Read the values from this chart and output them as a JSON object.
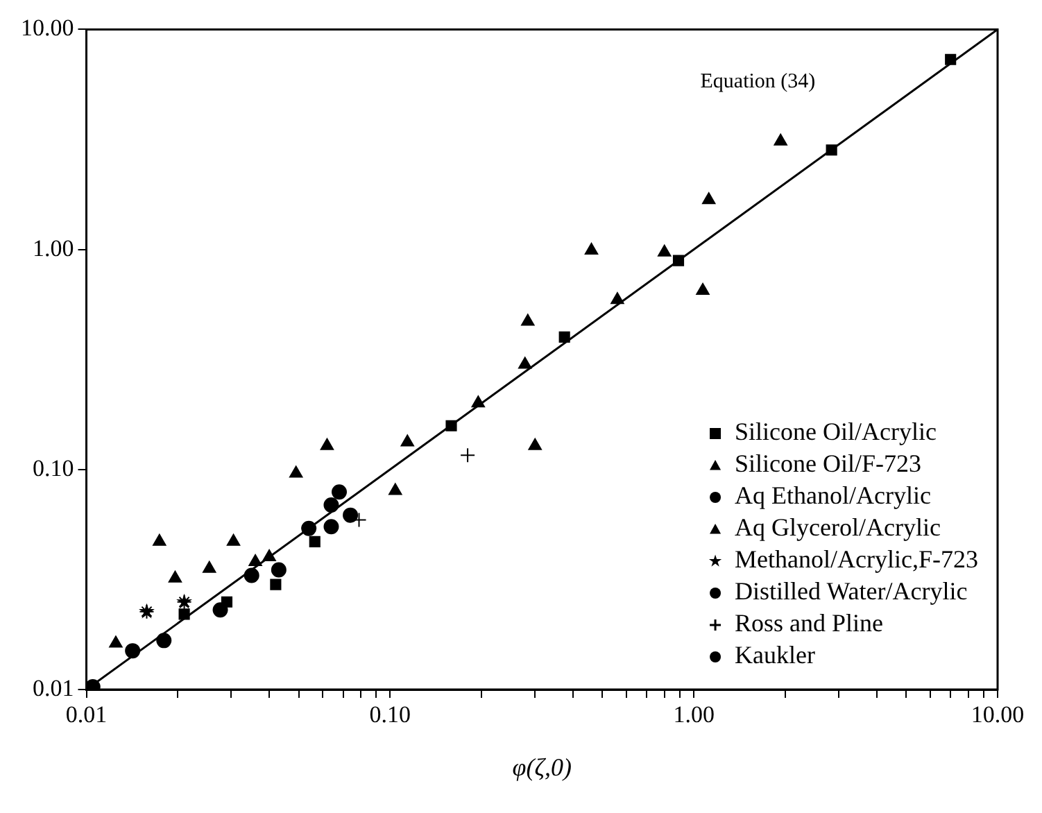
{
  "chart_data": {
    "type": "scatter",
    "xlabel": "φ(ζ,0)",
    "log": "xy",
    "grid": false,
    "legend": "bottom right",
    "xlim": [
      0.01,
      10
    ],
    "ylim": [
      0.01,
      10
    ],
    "xticks": [
      {
        "value": 0.01,
        "label": "0.01"
      },
      {
        "value": 0.02,
        "label": null
      },
      {
        "value": 0.03,
        "label": null
      },
      {
        "value": 0.04,
        "label": null
      },
      {
        "value": 0.05,
        "label": null
      },
      {
        "value": 0.06,
        "label": null
      },
      {
        "value": 0.07,
        "label": null
      },
      {
        "value": 0.08,
        "label": null
      },
      {
        "value": 0.09,
        "label": null
      },
      {
        "value": 0.1,
        "label": "0.10"
      },
      {
        "value": 0.2,
        "label": null
      },
      {
        "value": 0.3,
        "label": null
      },
      {
        "value": 0.4,
        "label": null
      },
      {
        "value": 0.5,
        "label": null
      },
      {
        "value": 0.6,
        "label": null
      },
      {
        "value": 0.7,
        "label": null
      },
      {
        "value": 0.8,
        "label": null
      },
      {
        "value": 0.9,
        "label": null
      },
      {
        "value": 1,
        "label": "1.00"
      },
      {
        "value": 2,
        "label": null
      },
      {
        "value": 3,
        "label": null
      },
      {
        "value": 4,
        "label": null
      },
      {
        "value": 5,
        "label": null
      },
      {
        "value": 6,
        "label": null
      },
      {
        "value": 7,
        "label": null
      },
      {
        "value": 8,
        "label": null
      },
      {
        "value": 9,
        "label": null
      },
      {
        "value": 10,
        "label": "10.00"
      }
    ],
    "yticks": [
      {
        "value": 0.01,
        "label": "0.01"
      },
      {
        "value": 0.1,
        "label": "0.10"
      },
      {
        "value": 1,
        "label": "1.00"
      },
      {
        "value": 10,
        "label": "10.00"
      }
    ],
    "annotations": [
      "Equation (34)"
    ],
    "series": [
      {
        "type": "line",
        "color": "#000000",
        "marker": "none",
        "line_style": "solid",
        "x": [
          0.01,
          10
        ],
        "values": [
          0.01,
          10
        ]
      },
      {
        "name": "Silicone Oil/Acrylic",
        "color": "#000000",
        "marker": "square",
        "x": [
          7.0,
          2.84,
          0.89,
          0.375,
          0.159,
          0.0565,
          0.042,
          0.029,
          0.021
        ],
        "values": [
          7.3,
          2.83,
          0.89,
          0.4,
          0.158,
          0.047,
          0.03,
          0.025,
          0.022
        ]
      },
      {
        "name": "Silicone Oil/F-723",
        "color": "#000000",
        "marker": "triangle",
        "x": [
          1.93,
          1.12,
          0.46,
          0.284,
          0.56,
          0.278,
          0.195,
          0.114,
          0.104,
          0.04,
          0.036,
          0.0254,
          0.0196
        ],
        "values": [
          3.1,
          1.68,
          0.99,
          0.47,
          0.59,
          0.3,
          0.2,
          0.133,
          0.08,
          0.04,
          0.038,
          0.0354,
          0.032
        ]
      },
      {
        "name": "Aq Ethanol/Acrylic",
        "color": "#000000",
        "marker": "circle",
        "x": [
          0.068,
          0.064,
          0.054,
          0.064,
          0.074,
          0.035,
          0.018
        ],
        "values": [
          0.079,
          0.069,
          0.054,
          0.055,
          0.062,
          0.033,
          0.0167
        ]
      },
      {
        "name": "Aq Glycerol/Acrylic",
        "color": "#000000",
        "marker": "triangle",
        "x": [
          0.8,
          1.07,
          0.3,
          0.062,
          0.049,
          0.0174,
          0.0305,
          0.0125
        ],
        "values": [
          0.97,
          0.65,
          0.128,
          0.128,
          0.096,
          0.047,
          0.047,
          0.0162
        ]
      },
      {
        "name": "Methanol/Acrylic,F-723",
        "color": "#000000",
        "marker": "star",
        "x": [
          0.0158,
          0.021
        ],
        "values": [
          0.0226,
          0.025
        ]
      },
      {
        "name": "Distilled Water/Acrylic",
        "color": "#000000",
        "marker": "circle",
        "x": [
          0.0142,
          0.0105
        ],
        "values": [
          0.015,
          0.0103
        ]
      },
      {
        "name": "Ross and Pline",
        "color": "#000000",
        "marker": "cross",
        "x": [
          0.18,
          0.079
        ],
        "values": [
          0.116,
          0.059
        ]
      },
      {
        "name": "Kaukler",
        "color": "#000000",
        "marker": "circle",
        "x": [
          0.043,
          0.0276
        ],
        "values": [
          0.035,
          0.023
        ]
      }
    ]
  }
}
